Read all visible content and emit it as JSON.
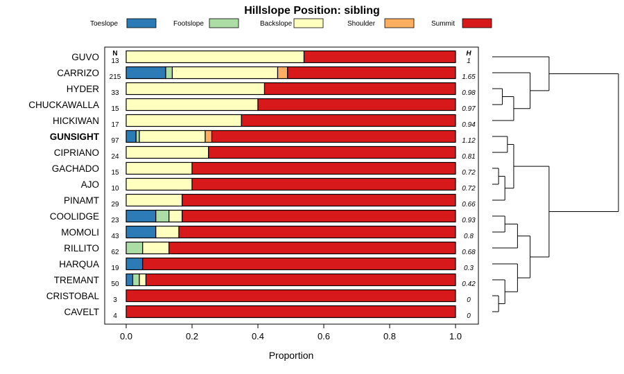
{
  "chart_data": {
    "type": "bar",
    "orientation": "horizontal-stacked",
    "title": "Hillslope Position: sibling",
    "xlabel": "Proportion",
    "ylabel": "",
    "xlim": [
      0,
      1
    ],
    "x_ticks": [
      "0.0",
      "0.2",
      "0.4",
      "0.6",
      "0.8",
      "1.0"
    ],
    "x_tick_values": [
      0,
      0.2,
      0.4,
      0.6,
      0.8,
      1.0
    ],
    "n_header": "N",
    "h_header": "H",
    "legend": [
      {
        "name": "Toeslope",
        "color": "#2c7bb6"
      },
      {
        "name": "Footslope",
        "color": "#abdda4"
      },
      {
        "name": "Backslope",
        "color": "#ffffbf"
      },
      {
        "name": "Shoulder",
        "color": "#fdae61"
      },
      {
        "name": "Summit",
        "color": "#d7191c"
      }
    ],
    "rows": [
      {
        "label": "GUVO",
        "n": "13",
        "h": "1",
        "bold": false,
        "values": [
          0,
          0,
          0.54,
          0,
          0.46
        ]
      },
      {
        "label": "CARRIZO",
        "n": "215",
        "h": "1.65",
        "bold": false,
        "values": [
          0.12,
          0.02,
          0.32,
          0.03,
          0.51
        ]
      },
      {
        "label": "HYDER",
        "n": "33",
        "h": "0.98",
        "bold": false,
        "values": [
          0,
          0,
          0.42,
          0,
          0.58
        ]
      },
      {
        "label": "CHUCKAWALLA",
        "n": "15",
        "h": "0.97",
        "bold": false,
        "values": [
          0,
          0,
          0.4,
          0,
          0.6
        ]
      },
      {
        "label": "HICKIWAN",
        "n": "17",
        "h": "0.94",
        "bold": false,
        "values": [
          0,
          0,
          0.35,
          0,
          0.65
        ]
      },
      {
        "label": "GUNSIGHT",
        "n": "97",
        "h": "1.12",
        "bold": true,
        "values": [
          0.03,
          0.01,
          0.2,
          0.02,
          0.74
        ]
      },
      {
        "label": "CIPRIANO",
        "n": "24",
        "h": "0.81",
        "bold": false,
        "values": [
          0,
          0,
          0.25,
          0,
          0.75
        ]
      },
      {
        "label": "GACHADO",
        "n": "15",
        "h": "0.72",
        "bold": false,
        "values": [
          0,
          0,
          0.2,
          0,
          0.8
        ]
      },
      {
        "label": "AJO",
        "n": "10",
        "h": "0.72",
        "bold": false,
        "values": [
          0,
          0,
          0.2,
          0,
          0.8
        ]
      },
      {
        "label": "PINAMT",
        "n": "29",
        "h": "0.66",
        "bold": false,
        "values": [
          0,
          0,
          0.17,
          0,
          0.83
        ]
      },
      {
        "label": "COOLIDGE",
        "n": "23",
        "h": "0.93",
        "bold": false,
        "values": [
          0.09,
          0.04,
          0.04,
          0,
          0.83
        ]
      },
      {
        "label": "MOMOLI",
        "n": "43",
        "h": "0.8",
        "bold": false,
        "values": [
          0.09,
          0,
          0.07,
          0,
          0.84
        ]
      },
      {
        "label": "RILLITO",
        "n": "62",
        "h": "0.68",
        "bold": false,
        "values": [
          0,
          0.05,
          0.08,
          0,
          0.87
        ]
      },
      {
        "label": "HARQUA",
        "n": "19",
        "h": "0.3",
        "bold": false,
        "values": [
          0.05,
          0,
          0,
          0,
          0.95
        ]
      },
      {
        "label": "TREMANT",
        "n": "50",
        "h": "0.42",
        "bold": false,
        "values": [
          0.02,
          0.02,
          0.02,
          0,
          0.94
        ]
      },
      {
        "label": "CRISTOBAL",
        "n": "3",
        "h": "0",
        "bold": false,
        "values": [
          0,
          0,
          0,
          0,
          1
        ]
      },
      {
        "label": "CAVELT",
        "n": "4",
        "h": "0",
        "bold": false,
        "values": [
          0,
          0,
          0,
          0,
          1
        ]
      }
    ],
    "dendrogram": {
      "merges": [
        {
          "a": 2,
          "b": 3,
          "height": 0.08
        },
        {
          "a": "m0",
          "b": 4,
          "height": 0.17
        },
        {
          "a": 1,
          "b": "m1",
          "height": 0.3
        },
        {
          "a": 0,
          "b": "m2",
          "height": 0.45
        },
        {
          "a": 7,
          "b": 8,
          "height": 0.05
        },
        {
          "a": "m4",
          "b": 9,
          "height": 0.1
        },
        {
          "a": 5,
          "b": 6,
          "height": 0.12
        },
        {
          "a": "m6",
          "b": "m5",
          "height": 0.17
        },
        {
          "a": 10,
          "b": 11,
          "height": 0.1
        },
        {
          "a": "m8",
          "b": 12,
          "height": 0.2
        },
        {
          "a": 15,
          "b": 16,
          "height": 0.05
        },
        {
          "a": 14,
          "b": "m10",
          "height": 0.1
        },
        {
          "a": 13,
          "b": "m11",
          "height": 0.2
        },
        {
          "a": "m9",
          "b": "m12",
          "height": 0.3
        },
        {
          "a": "m7",
          "b": "m13",
          "height": 0.45
        },
        {
          "a": "m3",
          "b": "m14",
          "height": 1.0
        }
      ]
    }
  }
}
